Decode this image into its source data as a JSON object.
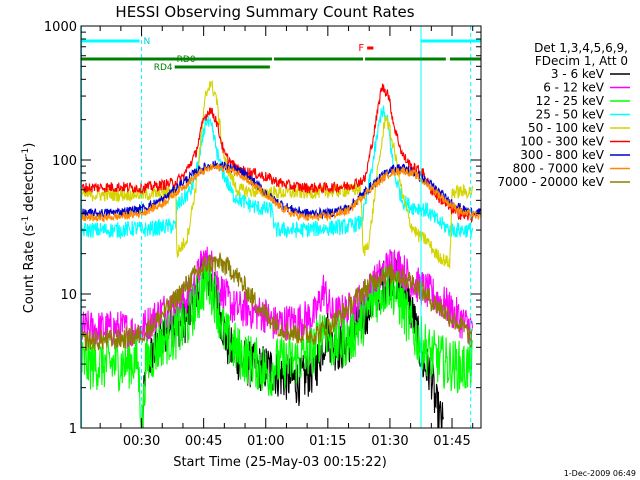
{
  "chart_data": {
    "type": "line",
    "title": "HESSI Observing Summary Count Rates",
    "xlabel": "Start Time (25-May-03 00:15:22)",
    "ylabel_main": "Count Rate (s",
    "ylabel_sup1": "-1",
    "ylabel_mid": " detector",
    "ylabel_sup2": "-1",
    "ylabel_end": ")",
    "yscale": "log",
    "ylim": [
      1,
      1000
    ],
    "xlim_minutes": [
      15.37,
      112.0
    ],
    "x_ticks": [
      {
        "m": 30,
        "label": "00:30"
      },
      {
        "m": 45,
        "label": "00:45"
      },
      {
        "m": 60,
        "label": "01:00"
      },
      {
        "m": 75,
        "label": "01:15"
      },
      {
        "m": 90,
        "label": "01:30"
      },
      {
        "m": 105,
        "label": "01:45"
      }
    ],
    "y_ticks": [
      {
        "v": 1,
        "label": "1"
      },
      {
        "v": 10,
        "label": "10"
      },
      {
        "v": 100,
        "label": "100"
      },
      {
        "v": 1000,
        "label": "1000"
      }
    ],
    "timestamp": "1-Dec-2009 06:49",
    "legend": {
      "header": [
        "Det 1,3,4,5,6,9,",
        "FDecim 1, Att 0"
      ],
      "entries": [
        {
          "label": "3 - 6 keV",
          "color": "#000000"
        },
        {
          "label": "6 - 12 keV",
          "color": "#ff00ff"
        },
        {
          "label": "12 - 25 keV",
          "color": "#00ff00"
        },
        {
          "label": "25 - 50 keV",
          "color": "#00ffff"
        },
        {
          "label": "50 - 100 keV",
          "color": "#d4d400"
        },
        {
          "label": "100 - 300 keV",
          "color": "#ff0000"
        },
        {
          "label": "300 - 800 keV",
          "color": "#0000cc"
        },
        {
          "label": "800 - 7000 keV",
          "color": "#ff8800"
        },
        {
          "label": "7000 - 20000 keV",
          "color": "#8b7d00"
        }
      ]
    },
    "flags": {
      "N_label": "N",
      "F_label": "F",
      "RD0_label": "RD0",
      "RD4_label": "RD4",
      "night_segments": [
        [
          15.5,
          29.5
        ],
        [
          97.5,
          112.0
        ]
      ],
      "rd0_segments": [
        [
          15.5,
          61.5
        ],
        [
          62.0,
          83.5
        ],
        [
          84.0,
          103.5
        ],
        [
          104.5,
          112.0
        ]
      ],
      "rd4_segments": [
        [
          38.0,
          61.0
        ]
      ],
      "flare_segment": [
        84.5,
        86.0
      ],
      "solid_vlines": [
        15.5,
        97.5
      ],
      "dashed_vlines": [
        30.0,
        109.5
      ]
    },
    "series": [
      {
        "name": "3 - 6 keV",
        "color": "#000000",
        "noise": 0.18,
        "points": [
          [
            30.2,
            1
          ],
          [
            31,
            3
          ],
          [
            34,
            4
          ],
          [
            37,
            6
          ],
          [
            40,
            6
          ],
          [
            43,
            9
          ],
          [
            45,
            15
          ],
          [
            47,
            12
          ],
          [
            49,
            7
          ],
          [
            51,
            4
          ],
          [
            54,
            3.2
          ],
          [
            58,
            2.8
          ],
          [
            61,
            2.8
          ],
          [
            63,
            2.5
          ],
          [
            68,
            2.2
          ],
          [
            72,
            2.8
          ],
          [
            75,
            5.5
          ],
          [
            76,
            4
          ],
          [
            79,
            4
          ],
          [
            82,
            5.5
          ],
          [
            85,
            8
          ],
          [
            88,
            12
          ],
          [
            91,
            14
          ],
          [
            94,
            10
          ],
          [
            96,
            6
          ],
          [
            98,
            3
          ],
          [
            100,
            2.5
          ],
          [
            101,
            1.5
          ],
          [
            102,
            1.2
          ],
          [
            103,
            1
          ]
        ]
      },
      {
        "name": "6 - 12 keV",
        "color": "#ff00ff",
        "noise": 0.14,
        "points": [
          [
            15.5,
            5.5
          ],
          [
            20,
            5.5
          ],
          [
            25,
            5.5
          ],
          [
            29,
            5.2
          ],
          [
            30.2,
            5.5
          ],
          [
            35,
            7.5
          ],
          [
            38,
            8
          ],
          [
            42,
            10
          ],
          [
            45,
            18
          ],
          [
            47,
            16
          ],
          [
            49,
            11
          ],
          [
            52,
            8
          ],
          [
            56,
            7.5
          ],
          [
            60,
            7
          ],
          [
            62,
            6
          ],
          [
            68,
            6.3
          ],
          [
            72,
            7
          ],
          [
            74,
            11
          ],
          [
            76,
            7
          ],
          [
            80,
            7.5
          ],
          [
            83,
            9
          ],
          [
            88,
            14
          ],
          [
            91,
            18
          ],
          [
            94,
            14
          ],
          [
            96,
            12
          ],
          [
            100,
            10
          ],
          [
            104,
            8
          ],
          [
            108,
            6
          ],
          [
            110,
            5.5
          ]
        ]
      },
      {
        "name": "12 - 25 keV",
        "color": "#00ff00",
        "noise": 0.2,
        "points": [
          [
            15.5,
            3
          ],
          [
            20,
            3
          ],
          [
            25,
            3
          ],
          [
            29,
            3.2
          ],
          [
            30.2,
            1
          ],
          [
            31,
            3
          ],
          [
            35,
            4.5
          ],
          [
            38,
            5
          ],
          [
            41,
            6
          ],
          [
            44,
            10
          ],
          [
            46,
            13
          ],
          [
            48,
            9
          ],
          [
            50,
            5
          ],
          [
            54,
            3.5
          ],
          [
            58,
            3
          ],
          [
            61,
            2.5
          ],
          [
            62,
            3
          ],
          [
            68,
            3.2
          ],
          [
            72,
            4
          ],
          [
            74,
            6
          ],
          [
            76,
            4.2
          ],
          [
            80,
            4.5
          ],
          [
            83,
            6
          ],
          [
            86,
            9
          ],
          [
            90,
            12
          ],
          [
            93,
            8
          ],
          [
            96,
            5
          ],
          [
            100,
            3.5
          ],
          [
            104,
            3
          ],
          [
            108,
            2.8
          ],
          [
            110,
            3
          ]
        ]
      },
      {
        "name": "25 - 50 keV",
        "color": "#00ffff",
        "noise": 0.06,
        "points": [
          [
            15.5,
            30
          ],
          [
            25,
            30
          ],
          [
            29,
            31
          ],
          [
            30.2,
            30
          ],
          [
            36,
            32
          ],
          [
            38.3,
            32
          ],
          [
            38.5,
            45
          ],
          [
            42,
            60
          ],
          [
            44,
            100
          ],
          [
            45.5,
            200
          ],
          [
            47,
            170
          ],
          [
            49,
            90
          ],
          [
            52,
            55
          ],
          [
            55,
            48
          ],
          [
            58,
            44
          ],
          [
            61.8,
            42
          ],
          [
            62,
            30
          ],
          [
            68,
            30
          ],
          [
            75,
            31
          ],
          [
            80,
            32
          ],
          [
            83,
            34
          ],
          [
            84,
            45
          ],
          [
            86,
            100
          ],
          [
            88,
            240
          ],
          [
            89.5,
            190
          ],
          [
            91,
            80
          ],
          [
            93,
            50
          ],
          [
            95,
            45
          ],
          [
            97,
            44
          ],
          [
            99,
            42
          ],
          [
            101,
            36
          ],
          [
            104.5,
            30
          ],
          [
            110,
            30
          ]
        ]
      },
      {
        "name": "50 - 100 keV",
        "color": "#d4d400",
        "noise": 0.05,
        "points": [
          [
            15.5,
            55
          ],
          [
            25,
            55
          ],
          [
            29,
            56
          ],
          [
            30.2,
            55
          ],
          [
            36,
            57
          ],
          [
            38.3,
            58
          ],
          [
            38.5,
            20
          ],
          [
            41,
            26
          ],
          [
            43,
            60
          ],
          [
            45.5,
            300
          ],
          [
            46.5,
            380
          ],
          [
            48,
            300
          ],
          [
            50,
            100
          ],
          [
            53,
            60
          ],
          [
            58,
            58
          ],
          [
            62,
            57
          ],
          [
            68,
            57
          ],
          [
            75,
            58
          ],
          [
            80,
            59
          ],
          [
            82,
            61
          ],
          [
            83,
            58
          ],
          [
            83.5,
            20
          ],
          [
            85,
            25
          ],
          [
            87,
            80
          ],
          [
            89,
            220
          ],
          [
            91,
            120
          ],
          [
            93,
            55
          ],
          [
            95,
            33
          ],
          [
            97,
            27
          ],
          [
            99,
            25
          ],
          [
            101,
            20
          ],
          [
            103,
            18
          ],
          [
            104.5,
            17
          ],
          [
            105,
            58
          ],
          [
            110,
            58
          ]
        ]
      },
      {
        "name": "100 - 300 keV",
        "color": "#ff0000",
        "noise": 0.04,
        "points": [
          [
            15.5,
            62
          ],
          [
            25,
            63
          ],
          [
            29,
            62
          ],
          [
            30.2,
            62
          ],
          [
            35,
            65
          ],
          [
            38,
            68
          ],
          [
            40,
            75
          ],
          [
            43,
            110
          ],
          [
            45,
            200
          ],
          [
            46.5,
            240
          ],
          [
            48,
            200
          ],
          [
            50,
            110
          ],
          [
            53,
            85
          ],
          [
            57,
            80
          ],
          [
            60,
            75
          ],
          [
            62,
            70
          ],
          [
            66,
            64
          ],
          [
            70,
            62
          ],
          [
            75,
            62
          ],
          [
            80,
            64
          ],
          [
            84,
            72
          ],
          [
            86,
            150
          ],
          [
            88,
            350
          ],
          [
            89.5,
            320
          ],
          [
            91,
            180
          ],
          [
            93,
            110
          ],
          [
            95,
            90
          ],
          [
            98,
            80
          ],
          [
            100,
            60
          ],
          [
            103,
            48
          ],
          [
            106,
            40
          ],
          [
            110,
            37
          ]
        ]
      },
      {
        "name": "300 - 800 keV",
        "color": "#0000cc",
        "noise": 0.035,
        "points": [
          [
            15.5,
            40
          ],
          [
            20,
            40
          ],
          [
            25,
            41
          ],
          [
            30,
            43
          ],
          [
            35,
            50
          ],
          [
            40,
            68
          ],
          [
            44,
            85
          ],
          [
            47,
            92
          ],
          [
            50,
            90
          ],
          [
            54,
            82
          ],
          [
            58,
            65
          ],
          [
            62,
            50
          ],
          [
            66,
            43
          ],
          [
            70,
            40
          ],
          [
            75,
            40
          ],
          [
            80,
            44
          ],
          [
            85,
            62
          ],
          [
            90,
            85
          ],
          [
            93,
            88
          ],
          [
            96,
            80
          ],
          [
            100,
            65
          ],
          [
            104,
            50
          ],
          [
            108,
            42
          ],
          [
            112,
            40
          ]
        ]
      },
      {
        "name": "800 - 7000 keV",
        "color": "#ff8800",
        "noise": 0.03,
        "points": [
          [
            15.5,
            37
          ],
          [
            20,
            37
          ],
          [
            25,
            38
          ],
          [
            30,
            40
          ],
          [
            35,
            47
          ],
          [
            40,
            63
          ],
          [
            44,
            80
          ],
          [
            47,
            88
          ],
          [
            50,
            87
          ],
          [
            54,
            78
          ],
          [
            58,
            62
          ],
          [
            62,
            48
          ],
          [
            66,
            40
          ],
          [
            70,
            37
          ],
          [
            75,
            38
          ],
          [
            80,
            42
          ],
          [
            85,
            60
          ],
          [
            90,
            80
          ],
          [
            93,
            84
          ],
          [
            96,
            78
          ],
          [
            100,
            62
          ],
          [
            104,
            48
          ],
          [
            108,
            40
          ],
          [
            112,
            38
          ]
        ]
      },
      {
        "name": "7000 - 20000 keV",
        "color": "#8b7d00",
        "noise": 0.08,
        "points": [
          [
            15.5,
            4.5
          ],
          [
            20,
            4.5
          ],
          [
            25,
            4.6
          ],
          [
            30,
            5
          ],
          [
            34,
            6.5
          ],
          [
            38,
            9
          ],
          [
            42,
            13
          ],
          [
            46,
            17
          ],
          [
            49,
            17
          ],
          [
            52,
            15
          ],
          [
            56,
            10
          ],
          [
            60,
            7
          ],
          [
            64,
            5.5
          ],
          [
            68,
            5
          ],
          [
            72,
            5
          ],
          [
            76,
            6
          ],
          [
            80,
            8
          ],
          [
            84,
            11
          ],
          [
            88,
            14
          ],
          [
            92,
            14
          ],
          [
            96,
            12
          ],
          [
            100,
            9
          ],
          [
            104,
            7
          ],
          [
            108,
            5.5
          ],
          [
            110,
            4.5
          ]
        ]
      }
    ]
  }
}
